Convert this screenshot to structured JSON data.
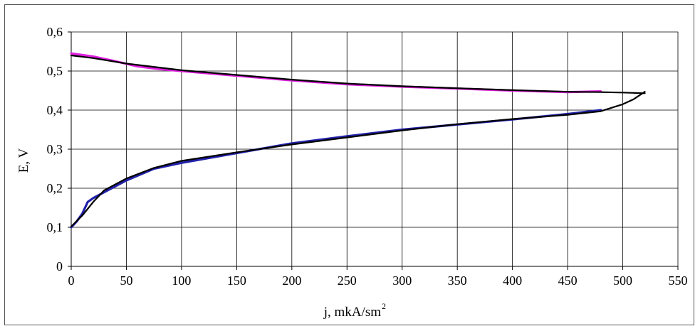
{
  "chart_data": {
    "type": "line",
    "title": "",
    "xlabel": "j, mkA/sm",
    "xlabel_superscript": "2",
    "ylabel": "E, V",
    "xlim": [
      0,
      550
    ],
    "ylim": [
      0,
      0.6
    ],
    "x_ticks": [
      0,
      50,
      100,
      150,
      200,
      250,
      300,
      350,
      400,
      450,
      500,
      550
    ],
    "y_ticks": [
      0,
      0.1,
      0.2,
      0.3,
      0.4,
      0.5,
      0.6
    ],
    "x_tick_labels": [
      "0",
      "50",
      "100",
      "150",
      "200",
      "250",
      "300",
      "350",
      "400",
      "450",
      "500",
      "550"
    ],
    "y_tick_labels": [
      "0",
      "0,1",
      "0,2",
      "0,3",
      "0,4",
      "0,5",
      "0,6"
    ],
    "grid": true,
    "legend": "none",
    "series": [
      {
        "color": "#e020e0",
        "points": [
          [
            0,
            0.545
          ],
          [
            20,
            0.537
          ],
          [
            40,
            0.525
          ],
          [
            60,
            0.512
          ],
          [
            80,
            0.505
          ],
          [
            100,
            0.5
          ],
          [
            150,
            0.488
          ],
          [
            200,
            0.476
          ],
          [
            250,
            0.466
          ],
          [
            300,
            0.46
          ],
          [
            350,
            0.455
          ],
          [
            400,
            0.45
          ],
          [
            450,
            0.446
          ],
          [
            480,
            0.448
          ]
        ]
      },
      {
        "color": "#000000",
        "points": [
          [
            0,
            0.54
          ],
          [
            20,
            0.533
          ],
          [
            50,
            0.519
          ],
          [
            100,
            0.502
          ],
          [
            150,
            0.49
          ],
          [
            200,
            0.478
          ],
          [
            250,
            0.468
          ],
          [
            300,
            0.461
          ],
          [
            350,
            0.456
          ],
          [
            400,
            0.451
          ],
          [
            450,
            0.447
          ],
          [
            480,
            0.446
          ],
          [
            500,
            0.445
          ],
          [
            520,
            0.443
          ]
        ]
      },
      {
        "color": "#2222aa",
        "points": [
          [
            0,
            0.1
          ],
          [
            5,
            0.115
          ],
          [
            10,
            0.135
          ],
          [
            15,
            0.165
          ],
          [
            20,
            0.175
          ],
          [
            30,
            0.19
          ],
          [
            50,
            0.22
          ],
          [
            75,
            0.25
          ],
          [
            100,
            0.265
          ],
          [
            150,
            0.29
          ],
          [
            200,
            0.315
          ],
          [
            250,
            0.333
          ],
          [
            300,
            0.35
          ],
          [
            350,
            0.363
          ],
          [
            400,
            0.376
          ],
          [
            450,
            0.39
          ],
          [
            480,
            0.4
          ]
        ]
      },
      {
        "color": "#000000",
        "points": [
          [
            0,
            0.102
          ],
          [
            10,
            0.13
          ],
          [
            20,
            0.165
          ],
          [
            30,
            0.195
          ],
          [
            50,
            0.225
          ],
          [
            75,
            0.252
          ],
          [
            100,
            0.27
          ],
          [
            150,
            0.292
          ],
          [
            200,
            0.312
          ],
          [
            250,
            0.33
          ],
          [
            300,
            0.348
          ],
          [
            350,
            0.364
          ],
          [
            400,
            0.377
          ],
          [
            450,
            0.388
          ],
          [
            480,
            0.397
          ],
          [
            500,
            0.415
          ],
          [
            510,
            0.428
          ],
          [
            520,
            0.447
          ]
        ]
      }
    ]
  }
}
